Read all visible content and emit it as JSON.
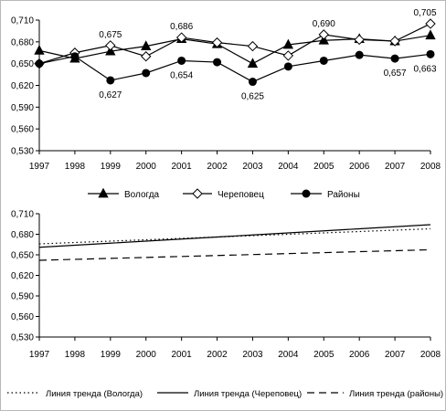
{
  "chart_data": [
    {
      "type": "line",
      "title": "",
      "xlabel": "",
      "ylabel": "",
      "x": [
        "1997",
        "1998",
        "1999",
        "2000",
        "2001",
        "2002",
        "2003",
        "2004",
        "2005",
        "2006",
        "2007",
        "2008"
      ],
      "ylim": [
        0.53,
        0.71
      ],
      "yticks": [
        "0,530",
        "0,560",
        "0,590",
        "0,620",
        "0,650",
        "0,680",
        "0,710"
      ],
      "grid": false,
      "legend_position": "bottom",
      "series": [
        {
          "name": "Вологда",
          "marker": "triangle",
          "values": [
            0.668,
            0.657,
            0.667,
            0.674,
            0.684,
            0.677,
            0.65,
            0.676,
            0.682,
            0.684,
            0.681,
            0.689
          ],
          "labels": [
            null,
            null,
            null,
            null,
            null,
            null,
            null,
            null,
            null,
            null,
            null,
            null
          ]
        },
        {
          "name": "Череповец",
          "marker": "diamond",
          "values": [
            0.65,
            0.665,
            0.675,
            0.66,
            0.686,
            0.679,
            0.674,
            0.661,
            0.69,
            0.683,
            0.681,
            0.705
          ],
          "labels": [
            null,
            null,
            "0,675",
            null,
            "0,686",
            null,
            null,
            null,
            "0,690",
            null,
            null,
            "0,705"
          ]
        },
        {
          "name": "Районы",
          "marker": "circle",
          "values": [
            0.65,
            0.66,
            0.627,
            0.637,
            0.654,
            0.652,
            0.625,
            0.646,
            0.654,
            0.662,
            0.657,
            0.663
          ],
          "labels": [
            null,
            null,
            "0,627",
            null,
            "0,654",
            null,
            "0,625",
            null,
            null,
            null,
            "0,657",
            "0,663"
          ]
        }
      ]
    },
    {
      "type": "line",
      "title": "",
      "xlabel": "",
      "ylabel": "",
      "x": [
        "1997",
        "1998",
        "1999",
        "2000",
        "2001",
        "2002",
        "2003",
        "2004",
        "2005",
        "2006",
        "2007",
        "2008"
      ],
      "ylim": [
        0.53,
        0.71
      ],
      "yticks": [
        "0,530",
        "0,560",
        "0,590",
        "0,620",
        "0,650",
        "0,680",
        "0,710"
      ],
      "grid": false,
      "legend_position": "bottom",
      "series": [
        {
          "name": "Линия тренда (Вологда)",
          "dash": "dotted",
          "values": [
            0.666,
            0.668,
            0.67,
            0.672,
            0.674,
            0.676,
            0.678,
            0.68,
            0.682,
            0.684,
            0.686,
            0.688
          ]
        },
        {
          "name": "Линия тренда (Череповец)",
          "dash": "solid",
          "values": [
            0.661,
            0.664,
            0.667,
            0.67,
            0.673,
            0.676,
            0.679,
            0.682,
            0.685,
            0.688,
            0.691,
            0.694
          ]
        },
        {
          "name": "Линия тренда (районы)",
          "dash": "dashed",
          "values": [
            0.642,
            0.6434,
            0.6448,
            0.6462,
            0.6476,
            0.649,
            0.6504,
            0.6518,
            0.6532,
            0.6546,
            0.656,
            0.6574
          ]
        }
      ]
    }
  ]
}
